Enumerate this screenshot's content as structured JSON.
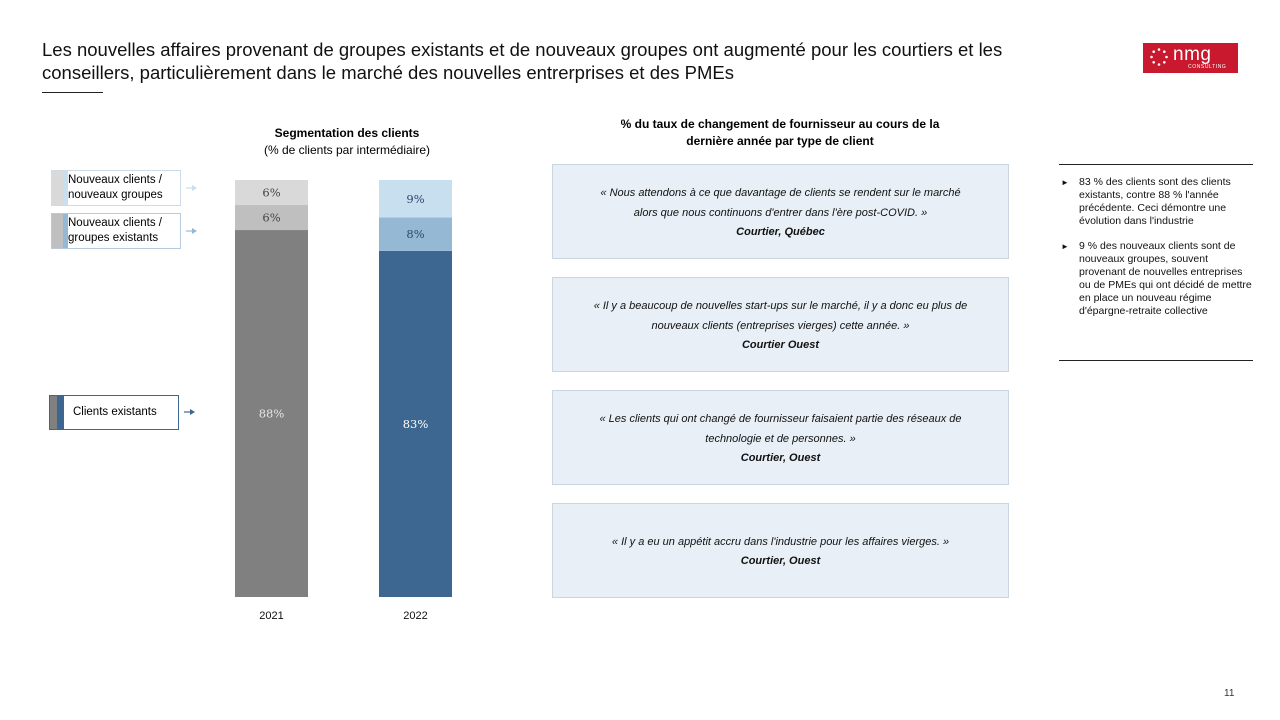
{
  "slide": {
    "title": "Les nouvelles affaires provenant de groupes existants et de nouveaux groupes ont augmenté pour les courtiers et les conseillers, particulièrement dans le marché des nouvelles entrerprises et des PMEs",
    "page_number": "11"
  },
  "logo": {
    "text": "nmg",
    "subtext": "CONSULTING"
  },
  "colors": {
    "existing_2021": "#808080",
    "existing_groups_2021": "#bfbfbf",
    "new_groups_2021": "#d9d9d9",
    "existing_2022": "#3d6791",
    "existing_groups_2022": "#95b9d5",
    "new_groups_2022": "#c7dfef",
    "logo_red": "#c8192e",
    "quote_bg": "#e8eff6"
  },
  "chart_data": {
    "type": "bar",
    "stacked": true,
    "title": "Segmentation des clients",
    "subtitle": "(% de clients par intermédiaire)",
    "categories": [
      "2021",
      "2022"
    ],
    "series": [
      {
        "name": "Clients existants",
        "values": [
          88,
          83
        ]
      },
      {
        "name": "Nouveaux clients / groupes existants",
        "values": [
          6,
          8
        ]
      },
      {
        "name": "Nouveaux clients / nouveaux groupes",
        "values": [
          6,
          9
        ]
      }
    ],
    "data_labels": [
      [
        "88%",
        "6%",
        "6%"
      ],
      [
        "83%",
        "8%",
        "9%"
      ]
    ],
    "ylim": [
      0,
      100
    ],
    "grid": false,
    "legend": "left"
  },
  "legend": {
    "new_groups": {
      "line1": "Nouveaux clients /",
      "line2": "nouveaux groupes"
    },
    "existing_groups": {
      "line1": "Nouveaux clients /",
      "line2": "groupes existants"
    },
    "existing": {
      "label": "Clients existants"
    }
  },
  "quotes_section": {
    "title_line1": "% du taux de changement de fournisseur au cours de la",
    "title_line2": "dernière année par type de client",
    "quotes": [
      {
        "line1": "« Nous attendons à ce que davantage de clients se rendent sur le marché",
        "line2": "alors que nous continuons d'entrer dans l'ère post-COVID. »",
        "source": "Courtier, Québec"
      },
      {
        "line1": "« Il y a beaucoup de nouvelles start-ups sur le marché, il y a donc eu plus de",
        "line2": "nouveaux clients (entreprises vierges) cette année. »",
        "source": "Courtier Ouest"
      },
      {
        "line1": "« Les clients qui ont changé de fournisseur faisaient partie des réseaux de",
        "line2": "technologie et de personnes. »",
        "source": "Courtier, Ouest"
      },
      {
        "line1": "« Il y a eu un appétit accru dans l'industrie pour les affaires vierges. »",
        "line2": "",
        "source": "Courtier, Ouest"
      }
    ]
  },
  "insights": [
    "83 % des clients sont des clients existants, contre 88 % l'année précédente.  Ceci démontre une évolution dans l'industrie",
    "9 % des nouveaux clients sont de nouveaux groupes, souvent provenant de nouvelles entreprises ou de PMEs qui ont décidé de mettre en place un nouveau régime d'épargne-retraite collective"
  ]
}
